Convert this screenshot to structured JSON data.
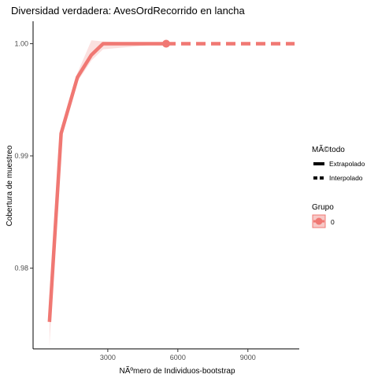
{
  "chart_data": {
    "type": "line",
    "title": "Diversidad verdadera: AvesOrdRecorrido en lancha",
    "xlabel": "NÃºmero de Individuos-bootstrap",
    "ylabel": "Cobertura de muestreo",
    "xlim": [
      -200,
      11200
    ],
    "ylim": [
      0.9728,
      1.002
    ],
    "x_ticks": [
      3000,
      6000,
      9000
    ],
    "x_tick_labels": [
      "3000",
      "6000",
      "9000"
    ],
    "y_ticks": [
      0.98,
      0.99,
      1.0
    ],
    "y_tick_labels": [
      "0.98",
      "0.99",
      "1.00"
    ],
    "grid": false,
    "legend_placement": "right",
    "colors": {
      "series": "#F07873",
      "band": "#F7C9C7",
      "axis": "#000000"
    },
    "legend": {
      "method_title": "MÃ©todo",
      "method_items": [
        "Extrapolado",
        "Interpolado"
      ],
      "group_title": "Grupo",
      "group_items": [
        "0"
      ]
    },
    "series": [
      {
        "name": "0",
        "interpolated": {
          "x": [
            500,
            1000,
            1700,
            2300,
            2800,
            5500
          ],
          "y": [
            0.9752,
            0.992,
            0.997,
            0.999,
            1.0,
            1.0
          ]
        },
        "extrapolated": {
          "x": [
            5500,
            11000
          ],
          "y": [
            1.0,
            1.0
          ]
        },
        "observed_point": {
          "x": 5500,
          "y": 1.0
        },
        "band": {
          "x": [
            500,
            1000,
            1700,
            2300,
            2800,
            5500
          ],
          "upper": [
            0.9757,
            0.9925,
            0.9974,
            1.0003,
            1.0002,
            1.0
          ],
          "lower": [
            0.973,
            0.9915,
            0.9966,
            0.9985,
            0.9995,
            1.0
          ]
        }
      }
    ]
  }
}
